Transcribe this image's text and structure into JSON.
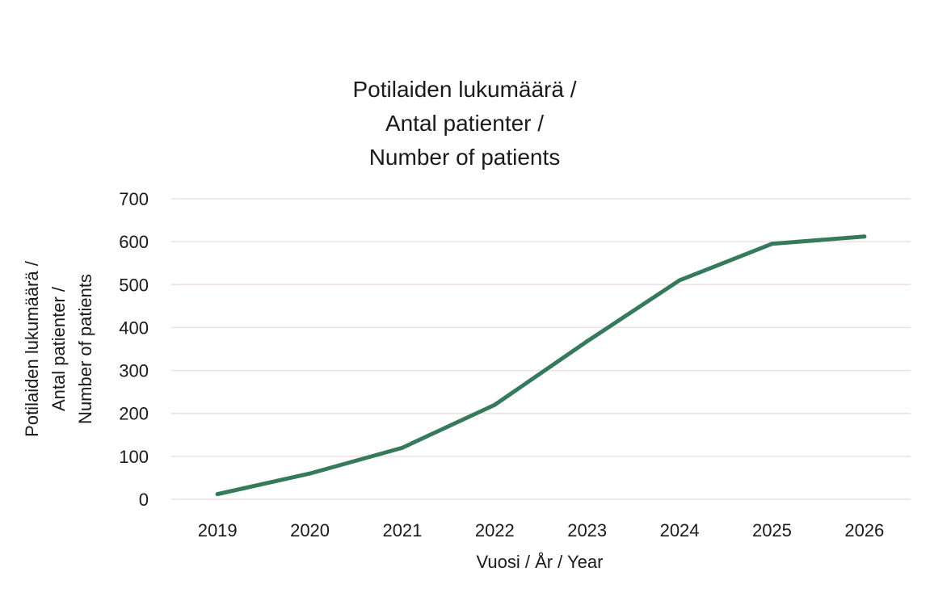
{
  "chart_data": {
    "type": "line",
    "title_lines": [
      "Potilaiden lukumäärä /",
      "Antal patienter /",
      "Number of patients"
    ],
    "xlabel": "Vuosi / År / Year",
    "ylabel_lines": [
      "Potilaiden lukumäärä /",
      "Antal patienter /",
      "Number of patients"
    ],
    "categories": [
      "2019",
      "2020",
      "2021",
      "2022",
      "2023",
      "2024",
      "2025",
      "2026"
    ],
    "series": [
      {
        "values": [
          12,
          60,
          120,
          220,
          368,
          510,
          595,
          612
        ]
      }
    ],
    "ylim": [
      0,
      700
    ],
    "yticks": [
      0,
      100,
      200,
      300,
      400,
      500,
      600,
      700
    ],
    "grid": true,
    "colors": {
      "line": "#357a5a",
      "grid": "#f0dde2"
    }
  }
}
